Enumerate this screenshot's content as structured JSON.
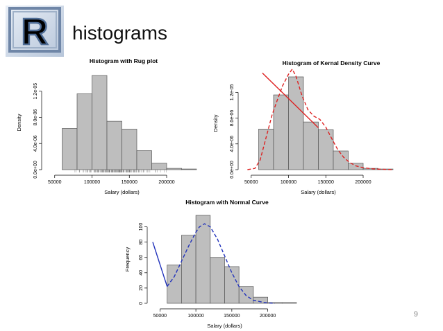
{
  "slide": {
    "title": "histograms",
    "page_number": "9",
    "logo_icon": "r-logo-icon"
  },
  "colors": {
    "bar_fill": "#bebebe",
    "bar_stroke": "#555555",
    "density_curve": "#dd2222",
    "normal_curve": "#2233bb"
  },
  "chart_data": [
    {
      "type": "bar",
      "title": "Histogram with Rug plot",
      "xlabel": "Salary (dollars)",
      "ylabel": "Density",
      "bin_edges": [
        60000,
        80000,
        100000,
        120000,
        140000,
        160000,
        180000,
        200000,
        220000,
        240000
      ],
      "values": [
        6.3e-06,
        1.16e-05,
        1.44e-05,
        7.4e-06,
        6.2e-06,
        2.9e-06,
        1e-06,
        2e-07,
        1e-07
      ],
      "xlim": [
        40000,
        240000
      ],
      "ylim": [
        0,
        1.44e-05
      ],
      "xticks": [
        "50000",
        "100000",
        "150000",
        "200000"
      ],
      "xtick_values": [
        50000,
        100000,
        150000,
        200000
      ],
      "yticks": [
        "0.0e+00",
        "4.0e-06",
        "8.0e-06",
        "1.2e-05"
      ],
      "ytick_values": [
        0,
        4e-06,
        8e-06,
        1.2e-05
      ],
      "rug": true
    },
    {
      "type": "bar",
      "title": "Histogram of Kernal Density Curve",
      "xlabel": "Salary (dollars)",
      "ylabel": "Density",
      "bin_edges": [
        60000,
        80000,
        100000,
        120000,
        140000,
        160000,
        180000,
        200000,
        220000,
        240000
      ],
      "values": [
        6.3e-06,
        1.16e-05,
        1.44e-05,
        7.4e-06,
        6.2e-06,
        2.9e-06,
        1e-06,
        2e-07,
        1e-07
      ],
      "xlim": [
        40000,
        240000
      ],
      "ylim": [
        0,
        1.44e-05
      ],
      "xticks": [
        "50000",
        "100000",
        "150000",
        "200000"
      ],
      "xtick_values": [
        50000,
        100000,
        150000,
        200000
      ],
      "yticks": [
        "0.0e+00",
        "4.0e-06",
        "8.0e-06",
        "1.2e-05"
      ],
      "ytick_values": [
        0,
        4e-06,
        8e-06,
        1.2e-05
      ],
      "lines": [
        {
          "style": "solid",
          "x": [
            65000,
            140000
          ],
          "y": [
            1.5e-05,
            6.5e-06
          ]
        },
        {
          "style": "dashed",
          "x": [
            45000,
            55000,
            62000,
            70000,
            78000,
            85000,
            92000,
            100000,
            105000,
            110000,
            118000,
            126000,
            134000,
            142000,
            150000,
            158000,
            166000,
            174000,
            182000,
            190000,
            200000,
            215000,
            240000
          ],
          "y": [
            0,
            2e-07,
            1.5e-06,
            5e-06,
            8.5e-06,
            1.08e-05,
            1.3e-05,
            1.48e-05,
            1.56e-05,
            1.45e-05,
            1.15e-05,
            9.3e-06,
            8.3e-06,
            7.8e-06,
            6.6e-06,
            4.8e-06,
            3.1e-06,
            1.9e-06,
            1.1e-06,
            6e-07,
            3e-07,
            1e-07,
            0
          ]
        }
      ]
    },
    {
      "type": "bar",
      "title": "Histogram with Normal Curve",
      "xlabel": "Salary (dollars)",
      "ylabel": "Frequency",
      "bin_edges": [
        60000,
        80000,
        100000,
        120000,
        140000,
        160000,
        180000,
        200000,
        220000,
        240000
      ],
      "values": [
        50,
        89,
        115,
        60,
        48,
        22,
        8,
        1,
        1
      ],
      "xlim": [
        40000,
        240000
      ],
      "ylim": [
        0,
        115
      ],
      "xticks": [
        "50000",
        "100000",
        "150000",
        "200000"
      ],
      "xtick_values": [
        50000,
        100000,
        150000,
        200000
      ],
      "yticks": [
        "0",
        "20",
        "40",
        "60",
        "80",
        "100"
      ],
      "ytick_values": [
        0,
        20,
        40,
        60,
        80,
        100
      ],
      "lines": [
        {
          "style": "solid",
          "x": [
            40000,
            60000
          ],
          "y": [
            80,
            22
          ]
        },
        {
          "style": "dashed",
          "x": [
            60000,
            70000,
            80000,
            90000,
            100000,
            105000,
            112000,
            120000,
            130000,
            140000,
            150000,
            160000,
            170000,
            180000,
            195000,
            210000
          ],
          "y": [
            22,
            35,
            55,
            75,
            93,
            100,
            104,
            100,
            84,
            62,
            40,
            22,
            10,
            4,
            1,
            0
          ]
        }
      ]
    }
  ]
}
